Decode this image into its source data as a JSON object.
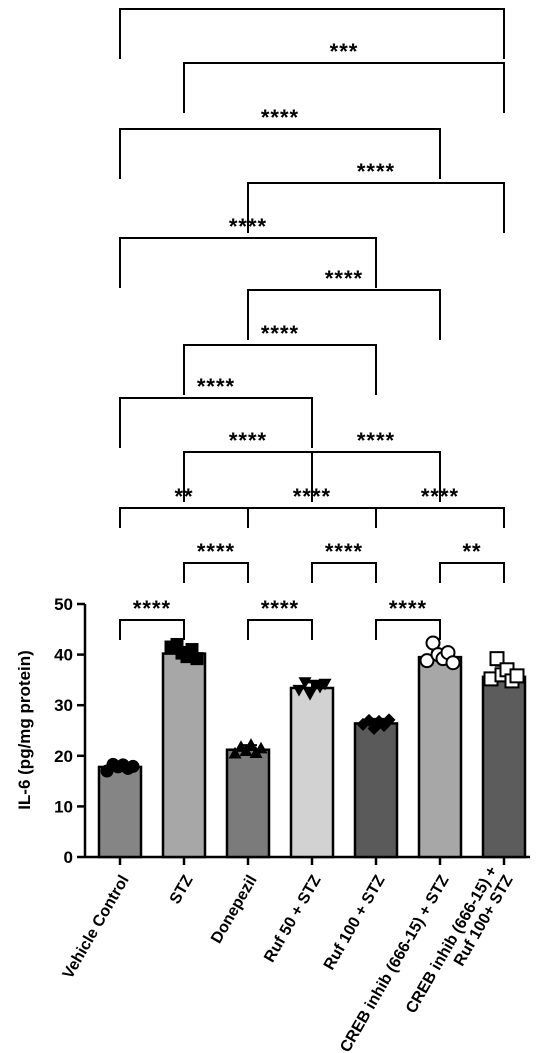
{
  "chart_data": {
    "type": "bar",
    "title": "",
    "ylabel": "IL-6  (pg/mg protein)",
    "xlabel": "",
    "ylim": [
      0,
      50
    ],
    "yticks": [
      0,
      10,
      20,
      30,
      40,
      50
    ],
    "grid": false,
    "categories": [
      [
        "Vehicle Control"
      ],
      [
        "STZ"
      ],
      [
        "Donepezil"
      ],
      [
        "Ruf 50 + STZ"
      ],
      [
        "Ruf 100 + STZ"
      ],
      [
        "CREB inhib (666-15) + STZ"
      ],
      [
        "CREB inhib (666-15) +",
        "Ruf 100+ STZ"
      ]
    ],
    "values": [
      17.8,
      40.2,
      21.2,
      33.4,
      26.4,
      39.5,
      35.6
    ],
    "errors": [
      0.8,
      1.3,
      0.9,
      1.1,
      0.9,
      1.5,
      2.2
    ],
    "bar_colors": [
      "#858585",
      "#a7a7a7",
      "#7b7b7b",
      "#d2d2d2",
      "#5a5a5a",
      "#a7a7a7",
      "#5c5c5c"
    ],
    "marker_shapes": [
      "circle",
      "square",
      "triangle",
      "triangle-down",
      "diamond",
      "circle-open",
      "square-open"
    ],
    "points": [
      [
        17.0,
        18.3,
        17.8,
        18.2,
        17.5,
        17.9
      ],
      [
        41.5,
        42.0,
        40.3,
        39.6,
        41.0,
        39.2
      ],
      [
        20.5,
        21.8,
        21.0,
        22.2,
        20.6,
        21.5
      ],
      [
        33.0,
        34.5,
        32.2,
        34.0,
        33.6,
        34.2
      ],
      [
        26.2,
        27.0,
        25.4,
        26.8,
        26.0,
        27.1
      ],
      [
        38.8,
        42.3,
        40.0,
        39.2,
        40.4,
        38.4
      ],
      [
        35.2,
        39.2,
        36.0,
        37.0,
        34.8,
        35.8
      ]
    ],
    "comparisons": [
      {
        "a": 0,
        "b": 6,
        "label": "****"
      },
      {
        "a": 1,
        "b": 6,
        "label": "***"
      },
      {
        "a": 0,
        "b": 5,
        "label": "****"
      },
      {
        "a": 2,
        "b": 6,
        "label": "****"
      },
      {
        "a": 0,
        "b": 4,
        "label": "****"
      },
      {
        "a": 2,
        "b": 5,
        "label": "****"
      },
      {
        "a": 1,
        "b": 4,
        "label": "****"
      },
      {
        "a": 0,
        "b": 3,
        "label": "****"
      },
      {
        "a": 1,
        "b": 3,
        "label": "****"
      },
      {
        "a": 3,
        "b": 5,
        "label": "****"
      },
      {
        "a": 0,
        "b": 2,
        "label": "**"
      },
      {
        "a": 2,
        "b": 4,
        "label": "****"
      },
      {
        "a": 4,
        "b": 6,
        "label": "****"
      },
      {
        "a": 1,
        "b": 2,
        "label": "****"
      },
      {
        "a": 3,
        "b": 4,
        "label": "****"
      },
      {
        "a": 5,
        "b": 6,
        "label": "**"
      },
      {
        "a": 0,
        "b": 1,
        "label": "****"
      },
      {
        "a": 2,
        "b": 3,
        "label": "****"
      },
      {
        "a": 4,
        "b": 5,
        "label": "****"
      }
    ]
  }
}
